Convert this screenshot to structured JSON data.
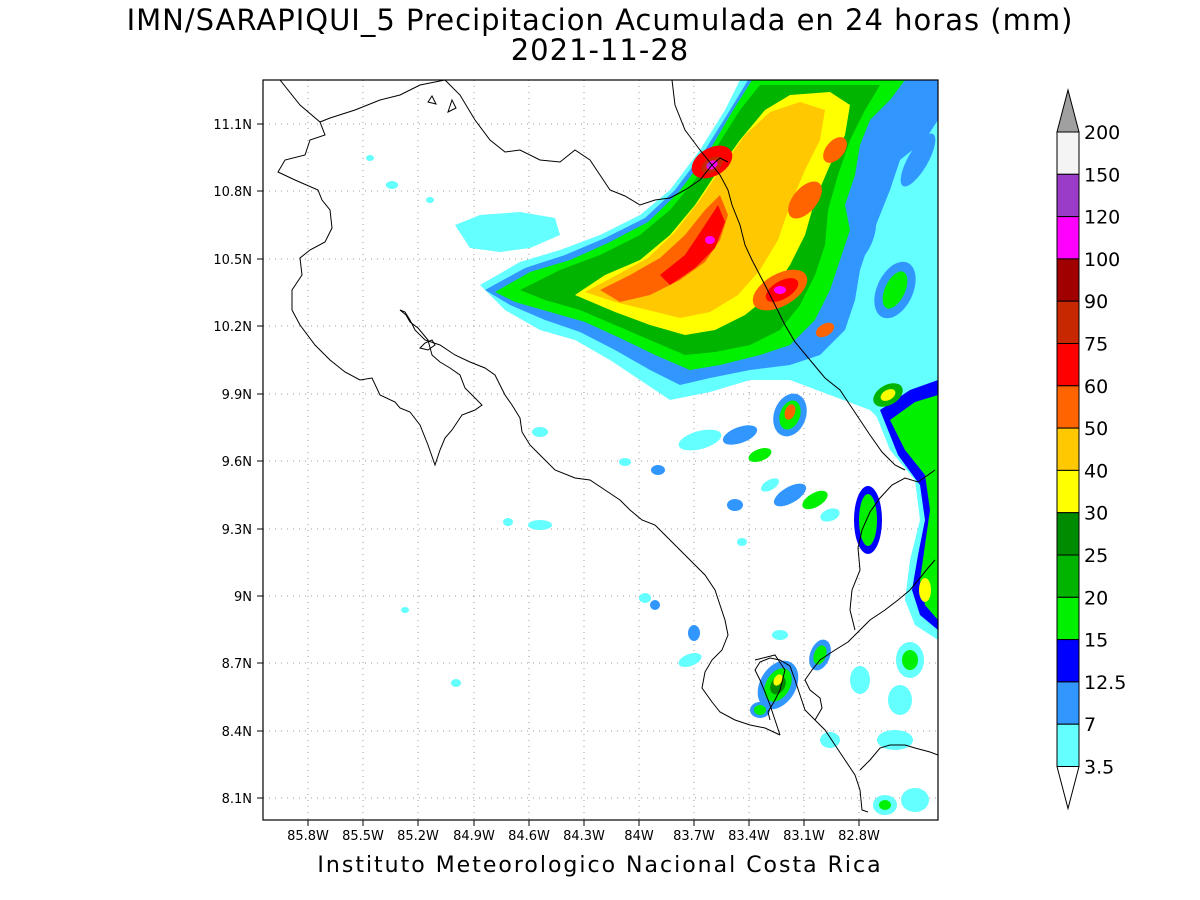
{
  "title": {
    "line1": "IMN/SARAPIQUI_5 Precipitacion Acumulada en 24 horas (mm)",
    "line2": "2021-11-28"
  },
  "footer": "Instituto Meteorologico Nacional Costa Rica",
  "axes": {
    "lon_ticks": [
      "85.8W",
      "85.5W",
      "85.2W",
      "84.9W",
      "84.6W",
      "84.3W",
      "84W",
      "83.7W",
      "83.4W",
      "83.1W",
      "82.8W"
    ],
    "lat_ticks": [
      "11.1N",
      "10.8N",
      "10.5N",
      "10.2N",
      "9.9N",
      "9.6N",
      "9.3N",
      "9N",
      "8.7N",
      "8.4N",
      "8.1N"
    ]
  },
  "colorbar": {
    "levels": [
      "200",
      "150",
      "120",
      "100",
      "90",
      "75",
      "60",
      "50",
      "40",
      "30",
      "25",
      "20",
      "15",
      "12.5",
      "7",
      "3.5"
    ],
    "colors": [
      "#f4f4f4",
      "#9a3cc8",
      "#ff00ff",
      "#a00000",
      "#c82800",
      "#ff0000",
      "#ff6400",
      "#ffc800",
      "#ffff00",
      "#008c00",
      "#00b400",
      "#00f000",
      "#0000ff",
      "#3296ff",
      "#64ffff"
    ],
    "top_arrow_color": "#a0a0a0",
    "bottom_arrow_color": "#ffffff"
  },
  "colors": {
    "light_cyan": "#64ffff",
    "blue_light": "#3296ff",
    "blue": "#0000ff",
    "green_bright": "#00f000",
    "green": "#00b400",
    "green_dark": "#008c00",
    "yellow": "#ffff00",
    "gold": "#ffc800",
    "orange": "#ff6400",
    "red": "#ff0000",
    "red_dark": "#c82800",
    "magenta": "#ff00ff",
    "purple": "#9a3cc8"
  }
}
